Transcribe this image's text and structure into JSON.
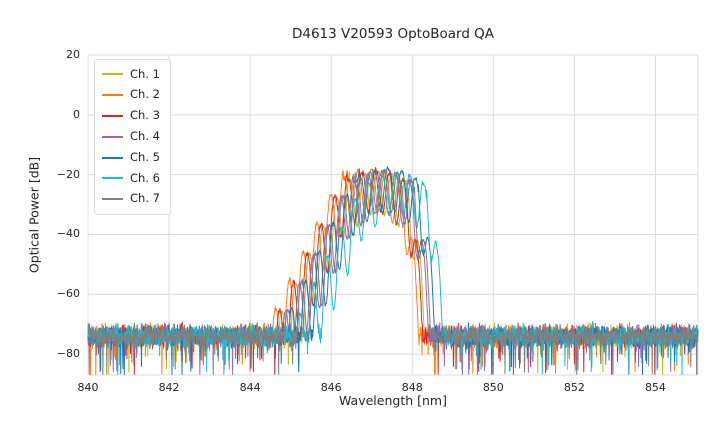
{
  "figure": {
    "background": "#ffffff"
  },
  "chart_data": {
    "type": "line",
    "title": "D4613 V20593 OptoBoard QA",
    "xlabel": "Wavelength [nm]",
    "ylabel": "Optical Power [dB]",
    "xlim": [
      840,
      855.05
    ],
    "ylim": [
      -87,
      20
    ],
    "xticks": [
      840,
      842,
      844,
      846,
      848,
      850,
      852,
      854
    ],
    "yticks": [
      20,
      0,
      -20,
      -40,
      -60,
      -80
    ],
    "grid": true,
    "grid_color": "#dcdcdc",
    "axis_text_color": "#262626",
    "legend_position": "upper left",
    "description": "Optical spectra of 7 VCSEL channels: flat noise floor near -75 dB across 840-855 nm, with a multimode emission band between ~845 and ~849 nm peaking near -18 dB, mode ripple spacing ~0.34 nm, sharp long-wavelength cutoff",
    "seed": 42,
    "noise_floor_db": -74,
    "noise_floor_sigma_db": 5,
    "noise_spike_prob": 0.04,
    "noise_spike_max_db": 14,
    "rise_start_offset_nm": -0.7,
    "rise_slope_db_per_nm": 28,
    "fall_start_offset_nm": 0.75,
    "fall_slope_db_per_nm": 95,
    "top_dome_db": 4,
    "ripple_period_nm": 0.34,
    "ripple_depth_db": 13,
    "ripple_depth_slope_db_per_nm": 6,
    "curve_jitter_db": 1.2,
    "sample_step_nm": 0.008,
    "series": [
      {
        "name": "Ch. 1",
        "color": "#bcbd22",
        "center_nm": 847.15,
        "peak_db": -19.0
      },
      {
        "name": "Ch. 2",
        "color": "#ff7f0e",
        "center_nm": 847.0,
        "peak_db": -18.0
      },
      {
        "name": "Ch. 3",
        "color": "#d62728",
        "center_nm": 847.1,
        "peak_db": -18.5
      },
      {
        "name": "Ch. 4",
        "color": "#9467bd",
        "center_nm": 847.25,
        "peak_db": -19.0
      },
      {
        "name": "Ch. 5",
        "color": "#1f77b4",
        "center_nm": 847.4,
        "peak_db": -18.0
      },
      {
        "name": "Ch. 6",
        "color": "#17becf",
        "center_nm": 847.6,
        "peak_db": -19.5
      },
      {
        "name": "Ch. 7",
        "color": "#7f7f7f",
        "center_nm": 847.3,
        "peak_db": -18.5
      }
    ]
  }
}
